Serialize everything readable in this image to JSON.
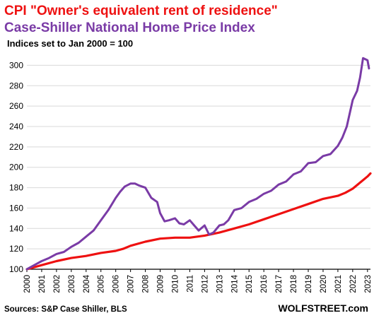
{
  "chart_data": {
    "type": "line",
    "title_line1": "CPI \"Owner's equivalent rent of residence\"",
    "title_line2": "Case-Shiller National Home Price Index",
    "subtitle": "Indices set to Jan 2000 = 100",
    "source": "Sources: S&P Case Shiller, BLS",
    "brand": "WOLFSTREET.com",
    "ylim": [
      100,
      310
    ],
    "yticks": [
      100,
      120,
      140,
      160,
      180,
      200,
      220,
      240,
      260,
      280,
      300
    ],
    "xlim": [
      2000,
      2023.2
    ],
    "xticks": [
      "2000",
      "2001",
      "2002",
      "2003",
      "2004",
      "2005",
      "2006",
      "2007",
      "2008",
      "2009",
      "2010",
      "2011",
      "2012",
      "2013",
      "2014",
      "2015",
      "2016",
      "2017",
      "2018",
      "2019",
      "2020",
      "2021",
      "2022",
      "2023"
    ],
    "grid": true,
    "colors": {
      "oer": "#ee1111",
      "case_shiller": "#7a3ba6",
      "grid": "#d9d9d9",
      "axis": "#000000"
    },
    "series": [
      {
        "id": "oer",
        "x": [
          2000,
          2001,
          2002,
          2003,
          2004,
          2005,
          2006,
          2006.5,
          2007,
          2008,
          2009,
          2010,
          2011,
          2012,
          2013,
          2014,
          2015,
          2016,
          2017,
          2018,
          2019,
          2020,
          2021,
          2021.5,
          2022,
          2022.5,
          2023,
          2023.2
        ],
        "values": [
          100,
          104,
          108,
          111,
          113,
          116,
          118,
          120,
          123,
          127,
          130,
          131,
          131,
          133,
          136,
          140,
          144,
          149,
          154,
          159,
          164,
          169,
          172,
          175,
          179,
          185,
          191,
          194
        ]
      },
      {
        "id": "case_shiller",
        "x": [
          2000,
          2000.5,
          2001,
          2001.5,
          2002,
          2002.5,
          2003,
          2003.5,
          2004,
          2004.5,
          2005,
          2005.5,
          2006,
          2006.3,
          2006.6,
          2007,
          2007.3,
          2007.6,
          2008,
          2008.4,
          2008.8,
          2009,
          2009.3,
          2009.6,
          2010,
          2010.3,
          2010.6,
          2011,
          2011.3,
          2011.6,
          2012,
          2012.3,
          2012.6,
          2013,
          2013.3,
          2013.6,
          2014,
          2014.5,
          2015,
          2015.5,
          2016,
          2016.5,
          2017,
          2017.5,
          2018,
          2018.5,
          2019,
          2019.5,
          2020,
          2020.5,
          2021,
          2021.3,
          2021.6,
          2022,
          2022.3,
          2022.5,
          2022.7,
          2023,
          2023.1
        ],
        "values": [
          100,
          104,
          108,
          111,
          115,
          117,
          122,
          126,
          132,
          138,
          148,
          158,
          170,
          176,
          181,
          184,
          184,
          182,
          180,
          170,
          166,
          155,
          147,
          148,
          150,
          145,
          144,
          148,
          143,
          138,
          143,
          134,
          136,
          143,
          144,
          148,
          158,
          160,
          166,
          169,
          174,
          177,
          183,
          186,
          193,
          196,
          204,
          205,
          211,
          213,
          221,
          229,
          240,
          266,
          275,
          288,
          307,
          305,
          297
        ]
      }
    ]
  }
}
